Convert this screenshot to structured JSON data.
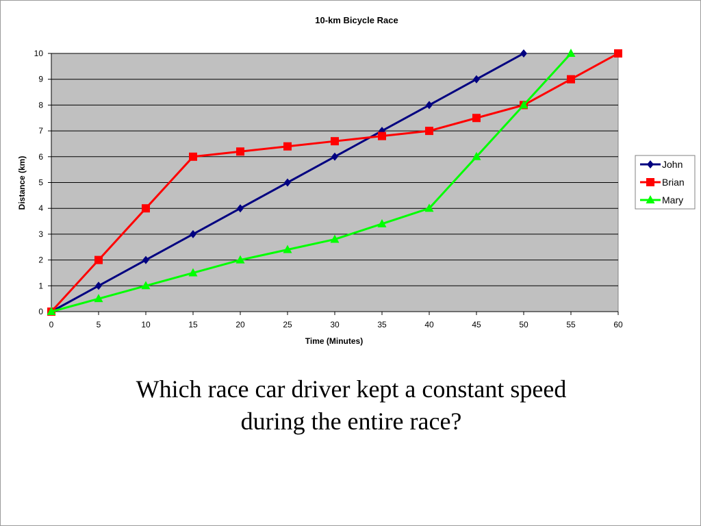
{
  "chart_data": {
    "type": "line",
    "title": "10-km Bicycle Race",
    "xlabel": "Time (Minutes)",
    "ylabel": "Distance (km)",
    "xlim": [
      0,
      60
    ],
    "ylim": [
      0,
      10
    ],
    "x_ticks": [
      0,
      5,
      10,
      15,
      20,
      25,
      30,
      35,
      40,
      45,
      50,
      55,
      60
    ],
    "y_ticks": [
      0,
      1,
      2,
      3,
      4,
      5,
      6,
      7,
      8,
      9,
      10
    ],
    "grid": "horizontal",
    "plot_background": "#c0c0c0",
    "legend_position": "right",
    "series": [
      {
        "name": "John",
        "color": "#000080",
        "marker": "diamond",
        "x": [
          0,
          5,
          10,
          15,
          20,
          25,
          30,
          35,
          40,
          45,
          50
        ],
        "y": [
          0,
          1,
          2,
          3,
          4,
          5,
          6,
          7,
          8,
          9,
          10
        ]
      },
      {
        "name": "Brian",
        "color": "#ff0000",
        "marker": "square",
        "x": [
          0,
          5,
          10,
          15,
          20,
          25,
          30,
          35,
          40,
          45,
          50,
          55,
          60
        ],
        "y": [
          0,
          2,
          4,
          6,
          6.2,
          6.4,
          6.6,
          6.8,
          7,
          7.5,
          8,
          9,
          10
        ]
      },
      {
        "name": "Mary",
        "color": "#00ff00",
        "marker": "triangle",
        "x": [
          0,
          5,
          10,
          15,
          20,
          25,
          30,
          35,
          40,
          45,
          50,
          55
        ],
        "y": [
          0,
          0.5,
          1,
          1.5,
          2,
          2.4,
          2.8,
          3.4,
          4,
          6,
          8,
          10
        ]
      }
    ]
  },
  "question": {
    "line1": "Which race car driver kept a constant speed",
    "line2": "during the entire race?"
  }
}
